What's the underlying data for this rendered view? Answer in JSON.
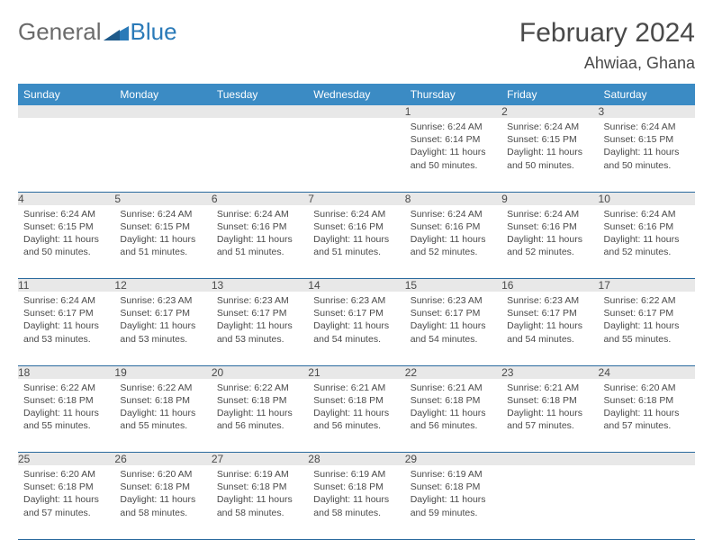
{
  "logo": {
    "general": "General",
    "blue": "Blue"
  },
  "title": "February 2024",
  "location": "Ahwiaa, Ghana",
  "colors": {
    "header_bg": "#3b8bc4",
    "header_fg": "#ffffff",
    "daynum_bg": "#e8e8e8",
    "text": "#4a4a4a",
    "rule": "#2a6a9e",
    "logo_blue": "#2a7ab8",
    "logo_gray": "#6b6b6b"
  },
  "weekdays": [
    "Sunday",
    "Monday",
    "Tuesday",
    "Wednesday",
    "Thursday",
    "Friday",
    "Saturday"
  ],
  "weeks": [
    [
      null,
      null,
      null,
      null,
      {
        "n": "1",
        "sr": "6:24 AM",
        "ss": "6:14 PM",
        "dl": "11 hours and 50 minutes."
      },
      {
        "n": "2",
        "sr": "6:24 AM",
        "ss": "6:15 PM",
        "dl": "11 hours and 50 minutes."
      },
      {
        "n": "3",
        "sr": "6:24 AM",
        "ss": "6:15 PM",
        "dl": "11 hours and 50 minutes."
      }
    ],
    [
      {
        "n": "4",
        "sr": "6:24 AM",
        "ss": "6:15 PM",
        "dl": "11 hours and 50 minutes."
      },
      {
        "n": "5",
        "sr": "6:24 AM",
        "ss": "6:15 PM",
        "dl": "11 hours and 51 minutes."
      },
      {
        "n": "6",
        "sr": "6:24 AM",
        "ss": "6:16 PM",
        "dl": "11 hours and 51 minutes."
      },
      {
        "n": "7",
        "sr": "6:24 AM",
        "ss": "6:16 PM",
        "dl": "11 hours and 51 minutes."
      },
      {
        "n": "8",
        "sr": "6:24 AM",
        "ss": "6:16 PM",
        "dl": "11 hours and 52 minutes."
      },
      {
        "n": "9",
        "sr": "6:24 AM",
        "ss": "6:16 PM",
        "dl": "11 hours and 52 minutes."
      },
      {
        "n": "10",
        "sr": "6:24 AM",
        "ss": "6:16 PM",
        "dl": "11 hours and 52 minutes."
      }
    ],
    [
      {
        "n": "11",
        "sr": "6:24 AM",
        "ss": "6:17 PM",
        "dl": "11 hours and 53 minutes."
      },
      {
        "n": "12",
        "sr": "6:23 AM",
        "ss": "6:17 PM",
        "dl": "11 hours and 53 minutes."
      },
      {
        "n": "13",
        "sr": "6:23 AM",
        "ss": "6:17 PM",
        "dl": "11 hours and 53 minutes."
      },
      {
        "n": "14",
        "sr": "6:23 AM",
        "ss": "6:17 PM",
        "dl": "11 hours and 54 minutes."
      },
      {
        "n": "15",
        "sr": "6:23 AM",
        "ss": "6:17 PM",
        "dl": "11 hours and 54 minutes."
      },
      {
        "n": "16",
        "sr": "6:23 AM",
        "ss": "6:17 PM",
        "dl": "11 hours and 54 minutes."
      },
      {
        "n": "17",
        "sr": "6:22 AM",
        "ss": "6:17 PM",
        "dl": "11 hours and 55 minutes."
      }
    ],
    [
      {
        "n": "18",
        "sr": "6:22 AM",
        "ss": "6:18 PM",
        "dl": "11 hours and 55 minutes."
      },
      {
        "n": "19",
        "sr": "6:22 AM",
        "ss": "6:18 PM",
        "dl": "11 hours and 55 minutes."
      },
      {
        "n": "20",
        "sr": "6:22 AM",
        "ss": "6:18 PM",
        "dl": "11 hours and 56 minutes."
      },
      {
        "n": "21",
        "sr": "6:21 AM",
        "ss": "6:18 PM",
        "dl": "11 hours and 56 minutes."
      },
      {
        "n": "22",
        "sr": "6:21 AM",
        "ss": "6:18 PM",
        "dl": "11 hours and 56 minutes."
      },
      {
        "n": "23",
        "sr": "6:21 AM",
        "ss": "6:18 PM",
        "dl": "11 hours and 57 minutes."
      },
      {
        "n": "24",
        "sr": "6:20 AM",
        "ss": "6:18 PM",
        "dl": "11 hours and 57 minutes."
      }
    ],
    [
      {
        "n": "25",
        "sr": "6:20 AM",
        "ss": "6:18 PM",
        "dl": "11 hours and 57 minutes."
      },
      {
        "n": "26",
        "sr": "6:20 AM",
        "ss": "6:18 PM",
        "dl": "11 hours and 58 minutes."
      },
      {
        "n": "27",
        "sr": "6:19 AM",
        "ss": "6:18 PM",
        "dl": "11 hours and 58 minutes."
      },
      {
        "n": "28",
        "sr": "6:19 AM",
        "ss": "6:18 PM",
        "dl": "11 hours and 58 minutes."
      },
      {
        "n": "29",
        "sr": "6:19 AM",
        "ss": "6:18 PM",
        "dl": "11 hours and 59 minutes."
      },
      null,
      null
    ]
  ],
  "labels": {
    "sunrise": "Sunrise:",
    "sunset": "Sunset:",
    "daylight": "Daylight:"
  }
}
